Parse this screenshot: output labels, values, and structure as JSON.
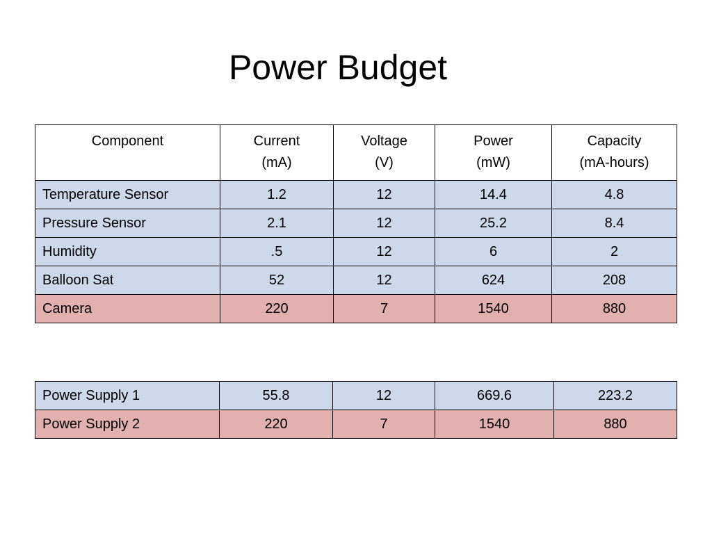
{
  "title": "Power Budget",
  "colors": {
    "normal_row": "#cdd8ea",
    "highlight_row": "#e3b0b0"
  },
  "table_main": {
    "headers": [
      {
        "line1": "Component",
        "line2": ""
      },
      {
        "line1": "Current",
        "line2": "(mA)"
      },
      {
        "line1": "Voltage",
        "line2": "(V)"
      },
      {
        "line1": "Power",
        "line2": "(mW)"
      },
      {
        "line1": "Capacity",
        "line2": "(mA-hours)"
      }
    ],
    "rows": [
      {
        "style": "normal",
        "cells": [
          "Temperature Sensor",
          "1.2",
          "12",
          "14.4",
          "4.8"
        ]
      },
      {
        "style": "normal",
        "cells": [
          "Pressure Sensor",
          "2.1",
          "12",
          "25.2",
          "8.4"
        ]
      },
      {
        "style": "normal",
        "cells": [
          "Humidity",
          ".5",
          "12",
          "6",
          "2"
        ]
      },
      {
        "style": "normal",
        "cells": [
          "Balloon Sat",
          "52",
          "12",
          "624",
          "208"
        ]
      },
      {
        "style": "highlight",
        "cells": [
          "Camera",
          "220",
          "7",
          "1540",
          "880"
        ]
      }
    ]
  },
  "table_supply": {
    "rows": [
      {
        "style": "normal",
        "cells": [
          "Power Supply 1",
          "55.8",
          "12",
          "669.6",
          "223.2"
        ]
      },
      {
        "style": "highlight",
        "cells": [
          "Power Supply 2",
          "220",
          "7",
          "1540",
          "880"
        ]
      }
    ]
  }
}
